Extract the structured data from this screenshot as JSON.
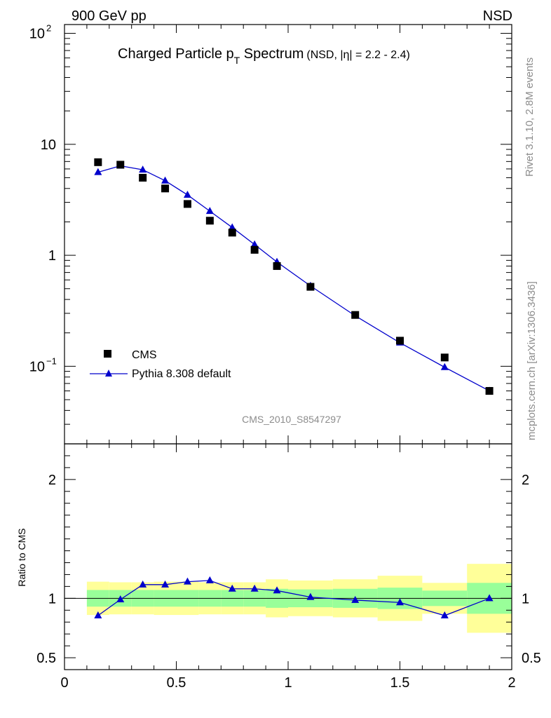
{
  "header": {
    "left": "900 GeV pp",
    "right": "NSD"
  },
  "plot_title": {
    "main": "Charged Particle p",
    "sub": "T",
    "main2": " Spectrum",
    "extra": "(NSD, |η| = 2.2 - 2.4)"
  },
  "side_labels": {
    "rivet": "Rivet 3.1.10,  2.8M events",
    "mcplots": "mcplots.cern.ch [arXiv:1306.3436]"
  },
  "analysis_id": "CMS_2010_S8547297",
  "legend": {
    "cms": "CMS",
    "mc": "Pythia 8.308 default"
  },
  "ratio_ylabel": "Ratio to CMS",
  "colors": {
    "mc": "#0000cc",
    "data": "#000000",
    "band_inner": "#99ff99",
    "band_outer": "#ffff99",
    "side_text": "#8c8c8c"
  },
  "chart_data": [
    {
      "type": "scatter",
      "yscale": "log",
      "xlim": [
        0,
        2
      ],
      "ylim": [
        0.02,
        120
      ],
      "y_ticks": [
        {
          "value": 0.1,
          "label": "10",
          "exp": "−1"
        },
        {
          "value": 1,
          "label": "1"
        },
        {
          "value": 10,
          "label": "10"
        },
        {
          "value": 100,
          "label": "10",
          "exp": "2"
        }
      ],
      "series": [
        {
          "name": "CMS",
          "x": [
            0.15,
            0.25,
            0.35,
            0.45,
            0.55,
            0.65,
            0.75,
            0.85,
            0.95,
            1.1,
            1.3,
            1.5,
            1.7,
            1.9
          ],
          "y": [
            6.9,
            6.55,
            5.0,
            4.0,
            2.9,
            2.05,
            1.6,
            1.12,
            0.8,
            0.52,
            0.29,
            0.17,
            0.12,
            0.06
          ]
        },
        {
          "name": "Pythia 8.308 default",
          "x": [
            0.15,
            0.25,
            0.35,
            0.45,
            0.55,
            0.65,
            0.75,
            0.85,
            0.95,
            1.1,
            1.3,
            1.5,
            1.7,
            1.9
          ],
          "y": [
            5.6,
            6.4,
            5.9,
            4.7,
            3.5,
            2.5,
            1.78,
            1.25,
            0.87,
            0.53,
            0.285,
            0.163,
            0.098,
            0.06
          ]
        }
      ]
    },
    {
      "type": "line",
      "xlim": [
        0,
        2
      ],
      "ylim": [
        0.4,
        2.3
      ],
      "x_ticks": [
        0,
        0.5,
        1,
        1.5,
        2
      ],
      "x_tick_labels": [
        "0",
        "0.5",
        "1",
        "1.5",
        "2"
      ],
      "y_ticks": [
        0.5,
        1,
        2
      ],
      "y_tick_labels": [
        "0.5",
        "1",
        "2"
      ],
      "bands": [
        {
          "x0": 0.1,
          "x1": 0.2,
          "inner": [
            0.93,
            1.07
          ],
          "outer": [
            0.86,
            1.14
          ]
        },
        {
          "x0": 0.2,
          "x1": 0.3,
          "inner": [
            0.93,
            1.07
          ],
          "outer": [
            0.865,
            1.135
          ]
        },
        {
          "x0": 0.3,
          "x1": 0.4,
          "inner": [
            0.93,
            1.07
          ],
          "outer": [
            0.865,
            1.135
          ]
        },
        {
          "x0": 0.4,
          "x1": 0.5,
          "inner": [
            0.93,
            1.07
          ],
          "outer": [
            0.86,
            1.14
          ]
        },
        {
          "x0": 0.5,
          "x1": 0.6,
          "inner": [
            0.93,
            1.07
          ],
          "outer": [
            0.86,
            1.14
          ]
        },
        {
          "x0": 0.6,
          "x1": 0.7,
          "inner": [
            0.93,
            1.07
          ],
          "outer": [
            0.865,
            1.135
          ]
        },
        {
          "x0": 0.7,
          "x1": 0.8,
          "inner": [
            0.93,
            1.07
          ],
          "outer": [
            0.865,
            1.135
          ]
        },
        {
          "x0": 0.8,
          "x1": 0.9,
          "inner": [
            0.93,
            1.07
          ],
          "outer": [
            0.865,
            1.135
          ]
        },
        {
          "x0": 0.9,
          "x1": 1.0,
          "inner": [
            0.92,
            1.08
          ],
          "outer": [
            0.84,
            1.16
          ]
        },
        {
          "x0": 1.0,
          "x1": 1.2,
          "inner": [
            0.925,
            1.075
          ],
          "outer": [
            0.85,
            1.15
          ]
        },
        {
          "x0": 1.2,
          "x1": 1.4,
          "inner": [
            0.92,
            1.08
          ],
          "outer": [
            0.84,
            1.16
          ]
        },
        {
          "x0": 1.4,
          "x1": 1.6,
          "inner": [
            0.91,
            1.09
          ],
          "outer": [
            0.81,
            1.19
          ]
        },
        {
          "x0": 1.6,
          "x1": 1.8,
          "inner": [
            0.935,
            1.065
          ],
          "outer": [
            0.87,
            1.13
          ]
        },
        {
          "x0": 1.8,
          "x1": 2.0,
          "inner": [
            0.87,
            1.13
          ],
          "outer": [
            0.71,
            1.29
          ]
        }
      ],
      "series": [
        {
          "name": "Pythia 8.308 default",
          "x": [
            0.15,
            0.25,
            0.35,
            0.45,
            0.55,
            0.65,
            0.75,
            0.85,
            0.95,
            1.1,
            1.3,
            1.5,
            1.7,
            1.9
          ],
          "y": [
            0.855,
            0.99,
            1.115,
            1.115,
            1.14,
            1.15,
            1.08,
            1.08,
            1.065,
            1.01,
            0.985,
            0.965,
            0.855,
            1.0
          ]
        }
      ]
    }
  ]
}
